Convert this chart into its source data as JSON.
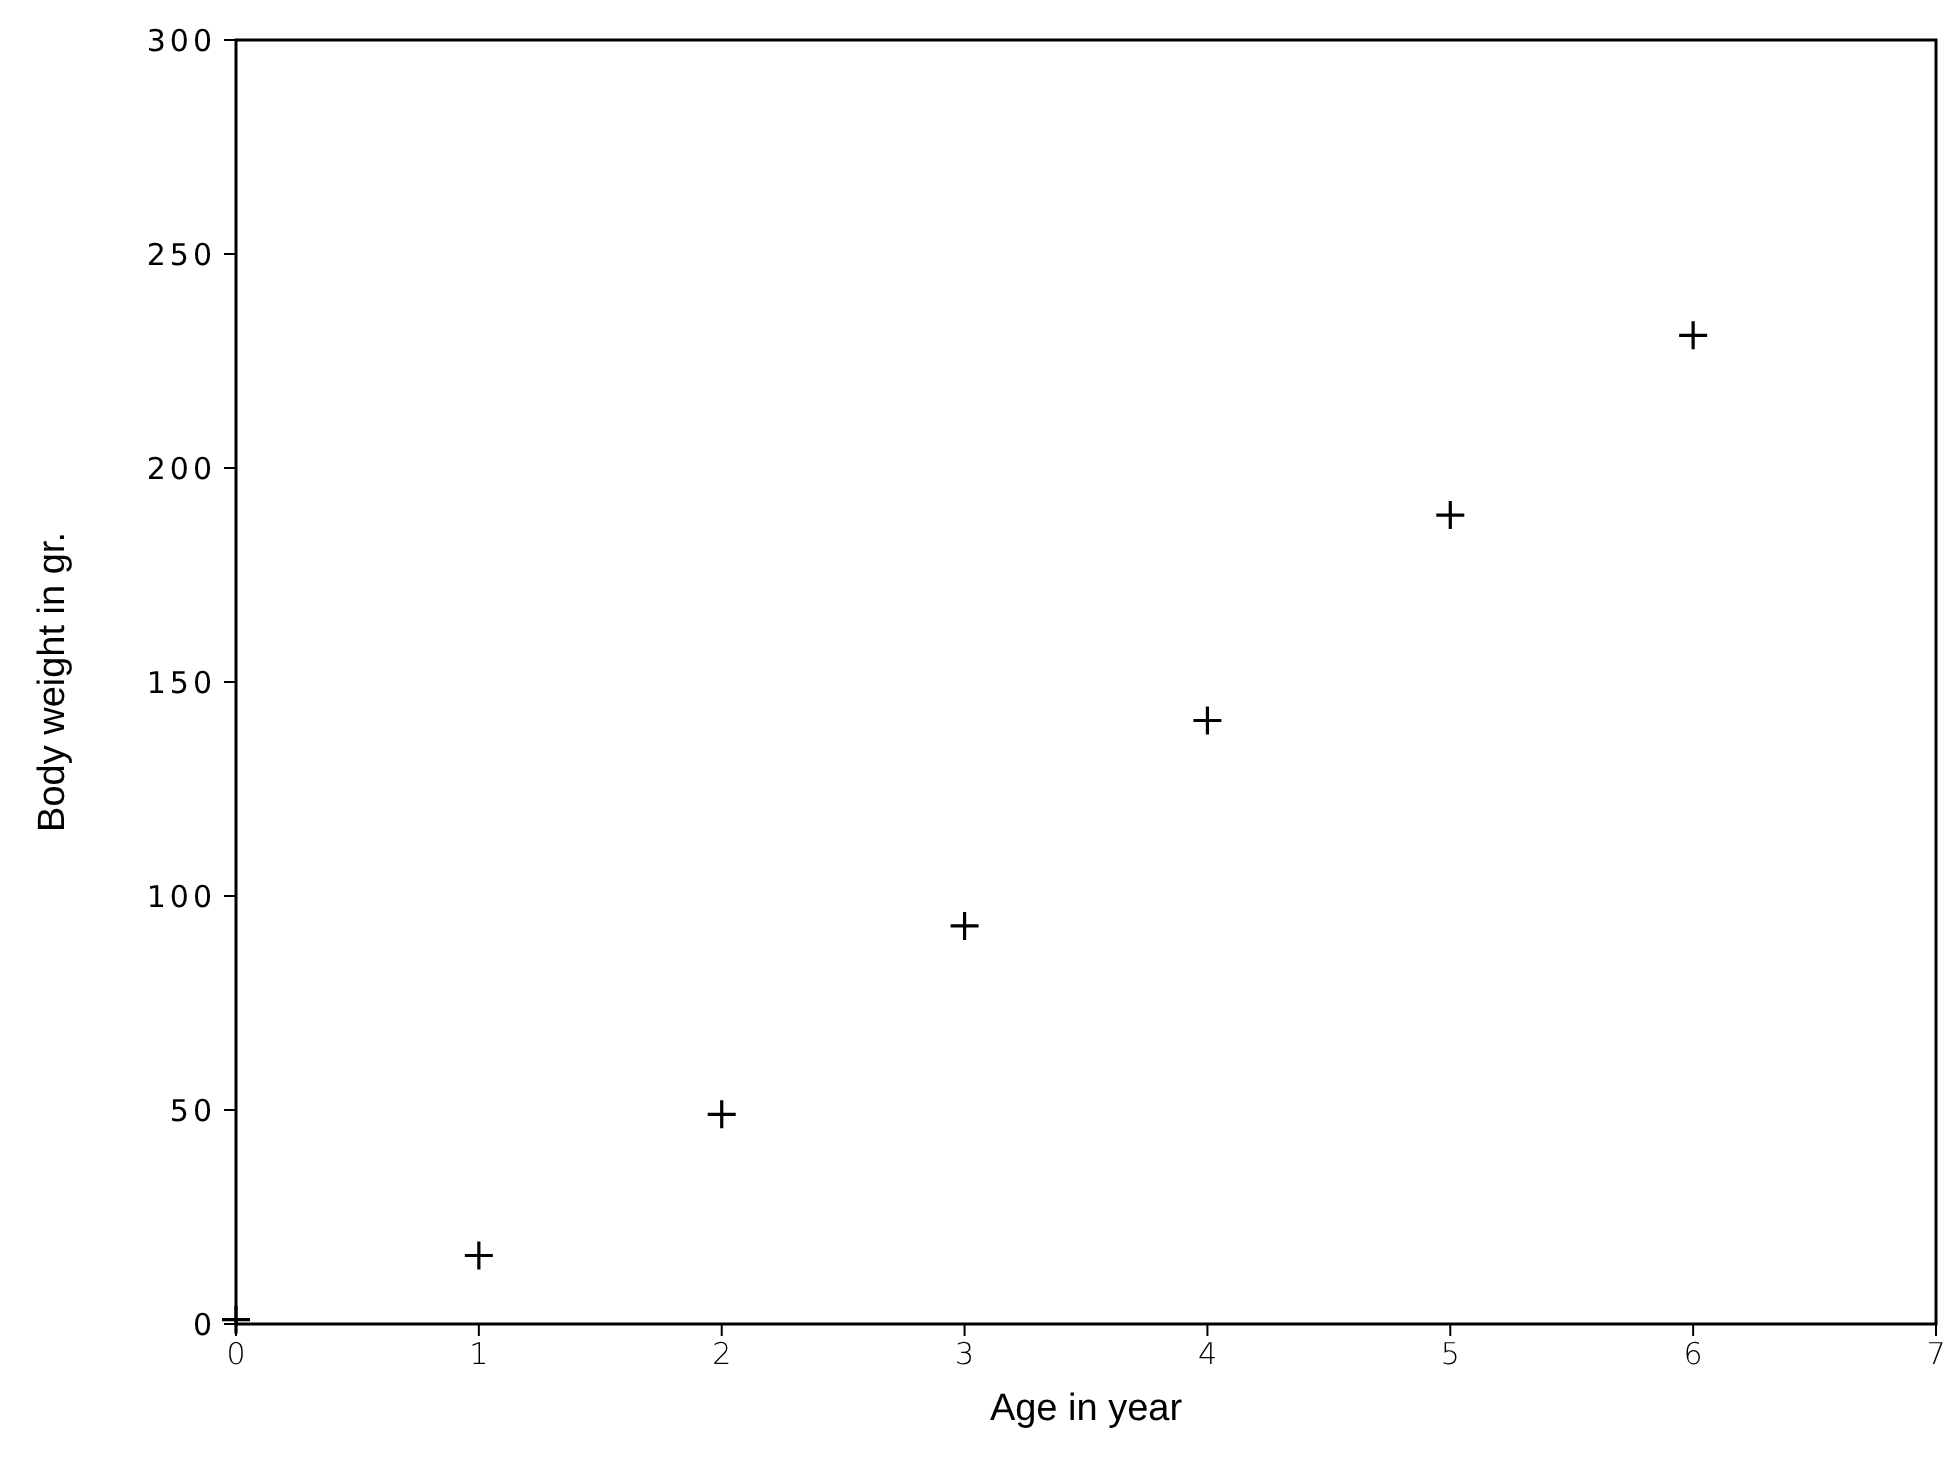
{
  "chart_data": {
    "type": "scatter",
    "xlabel": "Age in year",
    "ylabel": "Body weight in gr.",
    "x": [
      0,
      1,
      2,
      3,
      4,
      5,
      6
    ],
    "values": [
      1,
      16,
      49,
      93,
      141,
      189,
      231
    ],
    "color": "#000000",
    "marker": "cross",
    "xlim": [
      0,
      7
    ],
    "xticks": [
      0,
      1,
      2,
      3,
      4,
      5,
      6,
      7
    ],
    "ylim": [
      0,
      300
    ],
    "yticks": [
      0,
      50,
      100,
      150,
      200,
      250,
      300
    ]
  }
}
